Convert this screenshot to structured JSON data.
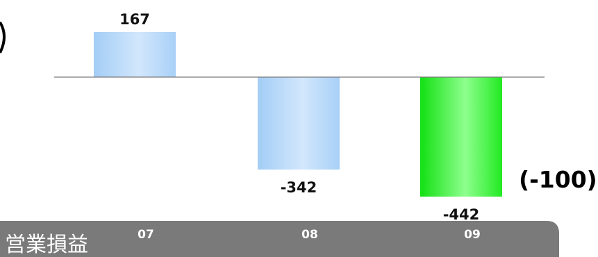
{
  "chart_data": {
    "type": "bar",
    "categories": [
      "07",
      "08",
      "09"
    ],
    "values": [
      167,
      -342,
      -442
    ],
    "data_labels": [
      "167",
      "-342",
      "-442"
    ],
    "xlabel": "営業損益",
    "ylim": [
      -442,
      167
    ],
    "grid": false,
    "annotations": [
      {
        "text": "(-100)",
        "category": "09"
      }
    ],
    "colors": {
      "bar_default_top": "#a3cdf6",
      "bar_default_mid": "#cfe5fb",
      "bar_highlight_top": "#10e010",
      "bar_highlight_mid": "#8cff8c",
      "baseline": "#7a7a7a",
      "axis_band": "#7a7a7a"
    },
    "highlight_index": 2
  }
}
